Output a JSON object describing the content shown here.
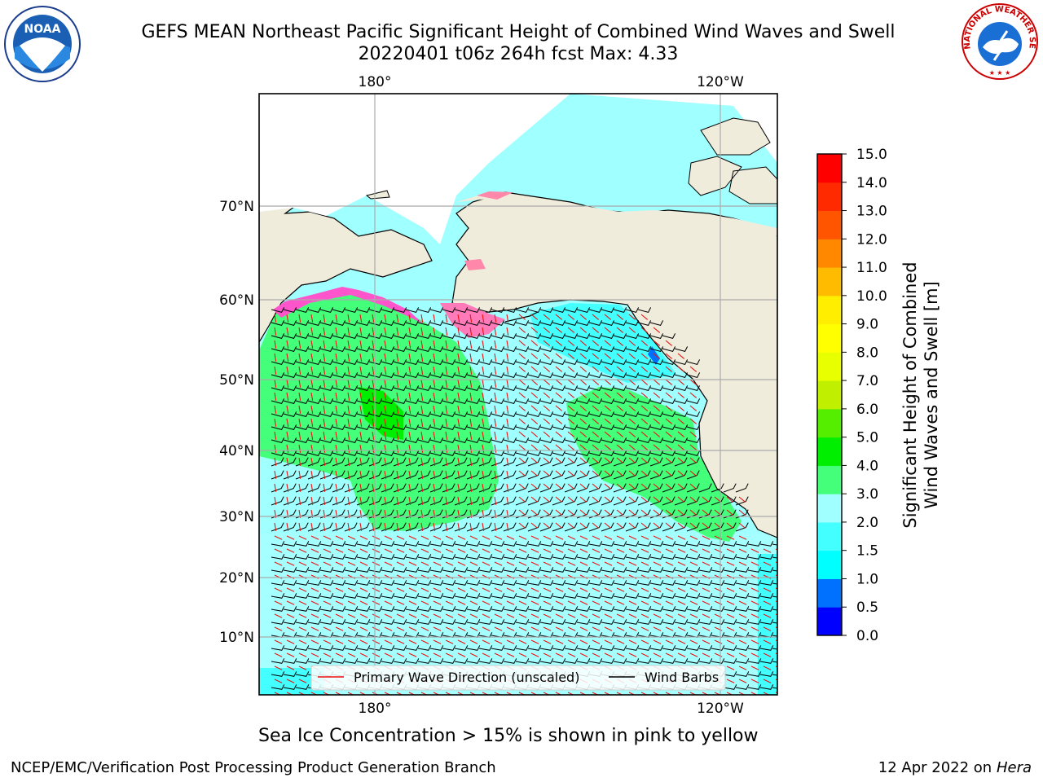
{
  "title_line1": "GEFS MEAN Northeast Pacific Significant Height of Combined Wind Waves and Swell",
  "title_line2": "20220401 t06z 264h fcst   Max: 4.33",
  "caption": "Sea Ice Concentration > 15% is shown in pink to yellow",
  "footer_left": "NCEP/EMC/Verification Post Processing Product Generation Branch",
  "footer_date": "12 Apr 2022 on ",
  "footer_host": "Hera",
  "legend": {
    "wave_direction": "Primary Wave Direction (unscaled)",
    "wind_barbs": "Wind Barbs"
  },
  "axes": {
    "lon_labels": [
      "180°",
      "120°W"
    ],
    "lat_labels": [
      "70°N",
      "60°N",
      "50°N",
      "40°N",
      "30°N",
      "20°N",
      "10°N"
    ]
  },
  "colorbar": {
    "label_line1": "Significant Height of Combined",
    "label_line2": "Wind Waves and Swell [m]",
    "ticks": [
      "0.0",
      "0.5",
      "1.0",
      "1.5",
      "2.0",
      "3.0",
      "4.0",
      "5.0",
      "6.0",
      "7.0",
      "8.0",
      "9.0",
      "10.0",
      "11.0",
      "12.0",
      "13.0",
      "14.0",
      "15.0"
    ],
    "colors": [
      "#0000ff",
      "#0070ff",
      "#00ffff",
      "#44ffff",
      "#a0ffff",
      "#44ff7a",
      "#00ee00",
      "#55ee00",
      "#c0f000",
      "#e8ff00",
      "#ffff00",
      "#ffee00",
      "#ffbb00",
      "#ff8800",
      "#ff5500",
      "#ff2a00",
      "#ff0000"
    ]
  },
  "colors": {
    "land": "#efecdc",
    "ocean_low": "#a0ffff",
    "ocean_mid": "#44ff7a",
    "ocean_high": "#00ee00",
    "wave_arrow": "#ee1111",
    "barb": "#000000"
  },
  "logos": {
    "noaa_text": "NOAA",
    "nws_text": "NATIONAL WEATHER SERVICE"
  }
}
